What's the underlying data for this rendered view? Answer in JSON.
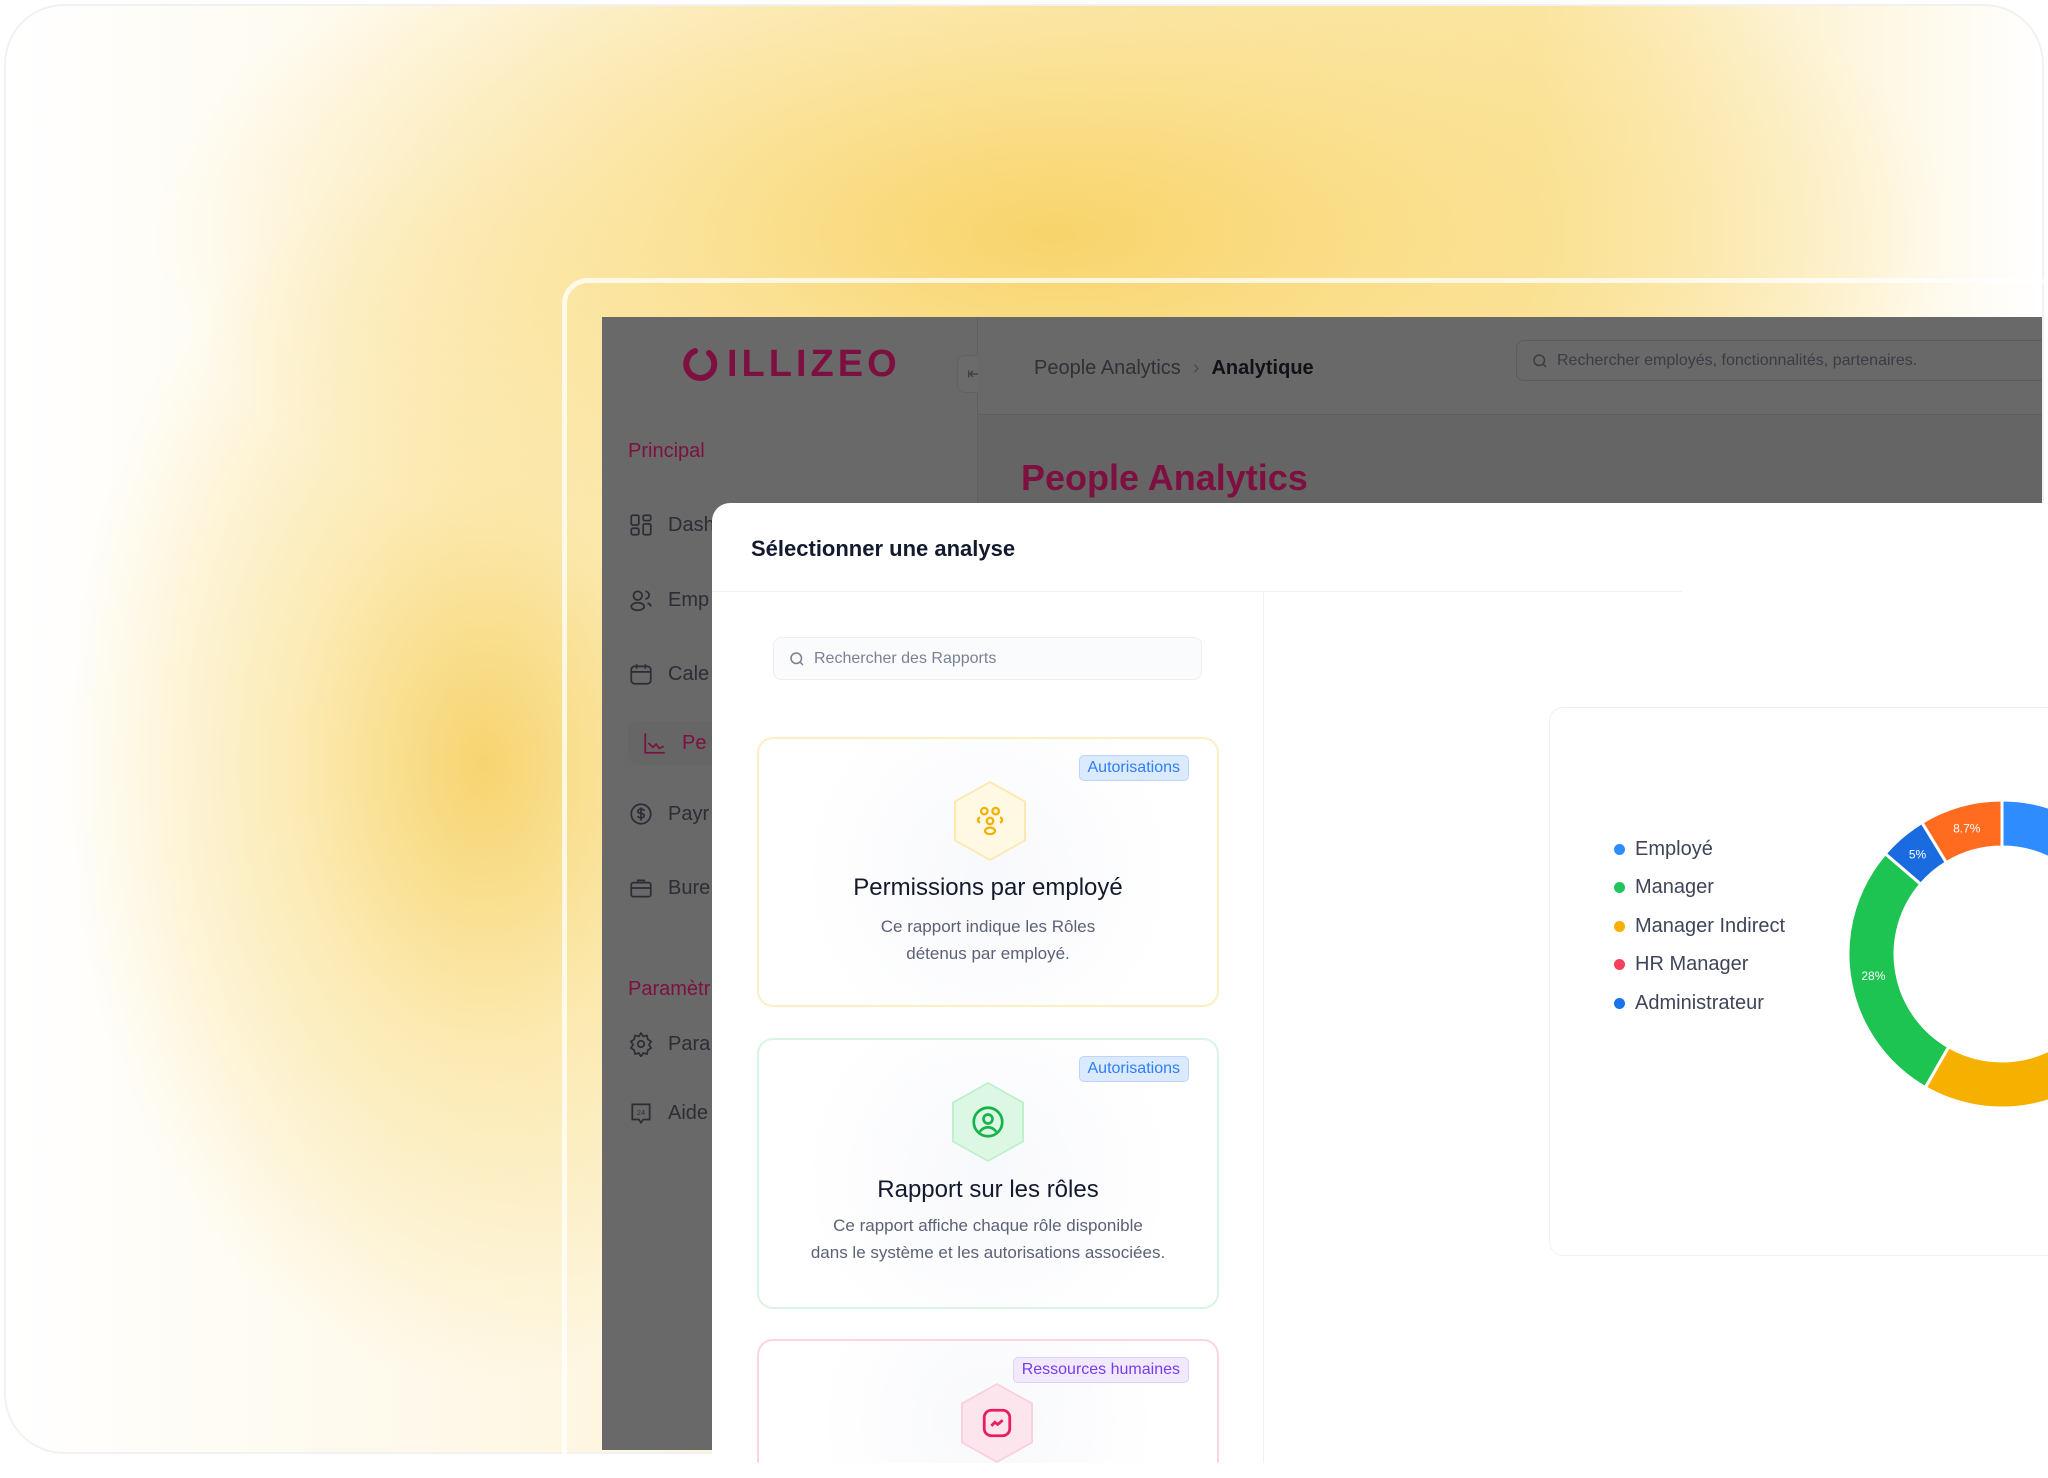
{
  "app": {
    "logo": "ILLIZEO"
  },
  "header": {
    "breadcrumb": [
      "People Analytics",
      "Analytique"
    ],
    "search_placeholder": "Rechercher employés, fonctionnalités, partenaires."
  },
  "page": {
    "title": "People Analytics"
  },
  "sidebar": {
    "section_main": "Principal",
    "items": [
      {
        "label": "Dash",
        "icon": "grid-icon"
      },
      {
        "label": "Emp",
        "icon": "users-icon"
      },
      {
        "label": "Cale",
        "icon": "calendar-icon"
      },
      {
        "label": "Pe",
        "icon": "chart-line-icon",
        "active": true
      },
      {
        "label": "Payr",
        "icon": "dollar-icon"
      },
      {
        "label": "Bure",
        "icon": "briefcase-icon"
      }
    ],
    "section_settings": "Paramètr",
    "settings_items": [
      {
        "label": "Para",
        "icon": "gear-icon"
      },
      {
        "label": "Aide",
        "icon": "support-24-icon"
      }
    ]
  },
  "modal": {
    "title": "Sélectionner une analyse",
    "search_placeholder": "Rechercher des Rapports",
    "cards": [
      {
        "badge": "Autorisations",
        "title": "Permissions par employé",
        "desc1": "Ce rapport indique les Rôles",
        "desc2": "détenus par employé.",
        "color": "#f5b000"
      },
      {
        "badge": "Autorisations",
        "title": "Rapport sur les rôles",
        "desc1": "Ce rapport affiche chaque rôle disponible",
        "desc2": "dans le système et les autorisations associées.",
        "color": "#22c55e"
      },
      {
        "badge": "Ressources humaines",
        "title": "",
        "desc1": "",
        "desc2": "",
        "color": "#e91e63"
      }
    ]
  },
  "chart_data": {
    "type": "pie",
    "donut": true,
    "legend_position": "left",
    "legend": [
      {
        "name": "Employé",
        "color": "#2f8cff"
      },
      {
        "name": "Manager",
        "color": "#22c55e"
      },
      {
        "name": "Manager Indirect",
        "color": "#f5b000"
      },
      {
        "name": "HR Manager",
        "color": "#f43f5e"
      },
      {
        "name": "Administrateur",
        "color": "#1a73e8"
      }
    ],
    "slices": [
      {
        "name": "Employé",
        "value": 35,
        "color": "#2f8cff",
        "label": ""
      },
      {
        "name": "Manager Indirect",
        "value": 23.3,
        "color": "#f5b000",
        "label": ""
      },
      {
        "name": "Manager",
        "value": 28,
        "color": "#1dc451",
        "label": "28%"
      },
      {
        "name": "Administrateur",
        "value": 5,
        "color": "#1a6be0",
        "label": "5%"
      },
      {
        "name": "HR Manager",
        "value": 8.7,
        "color": "#ff6b1f",
        "label": "8.7%"
      }
    ]
  }
}
